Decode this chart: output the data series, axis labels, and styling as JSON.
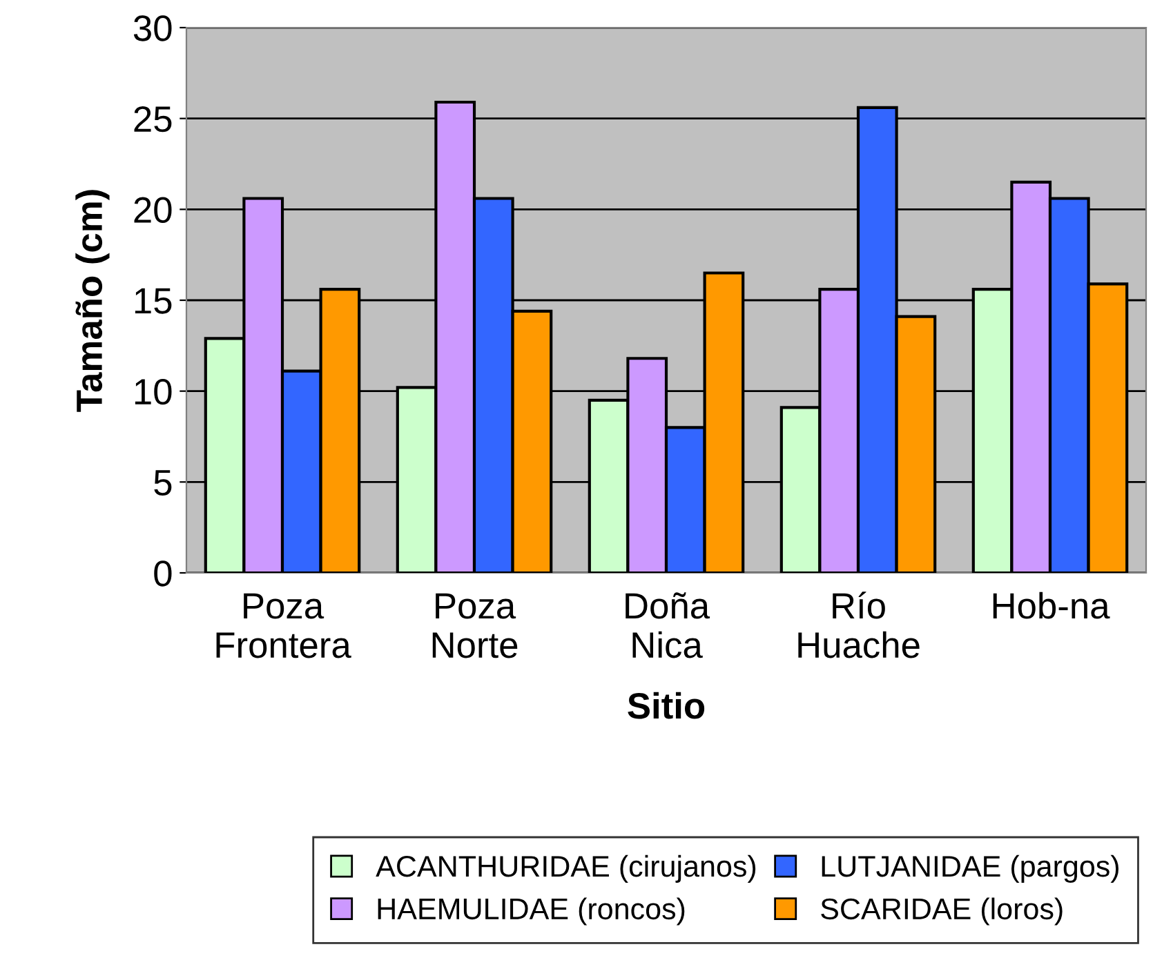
{
  "chart_data": {
    "type": "bar",
    "xlabel": "Sitio",
    "ylabel": "Tamaño (cm)",
    "categories": [
      "Poza\nFrontera",
      "Poza\nNorte",
      "Doña\nNica",
      "Río\nHuache",
      "Hob-na"
    ],
    "series": [
      {
        "name": "ACANTHURIDAE (cirujanos)",
        "color": "#ccffcc",
        "values": [
          12.9,
          10.2,
          9.5,
          9.1,
          15.6
        ]
      },
      {
        "name": "HAEMULIDAE (roncos)",
        "color": "#cc99ff",
        "values": [
          20.6,
          25.9,
          11.8,
          15.6,
          21.5
        ]
      },
      {
        "name": "LUTJANIDAE (pargos)",
        "color": "#3366ff",
        "values": [
          11.1,
          20.6,
          8.0,
          25.6,
          20.6
        ]
      },
      {
        "name": "SCARIDAE (loros)",
        "color": "#ff9900",
        "values": [
          15.6,
          14.4,
          16.5,
          14.1,
          15.9
        ]
      }
    ],
    "ylim": [
      0,
      30
    ],
    "yticks": [
      0,
      5,
      10,
      15,
      20,
      25,
      30
    ],
    "grid": "y",
    "legend": "bottom"
  }
}
